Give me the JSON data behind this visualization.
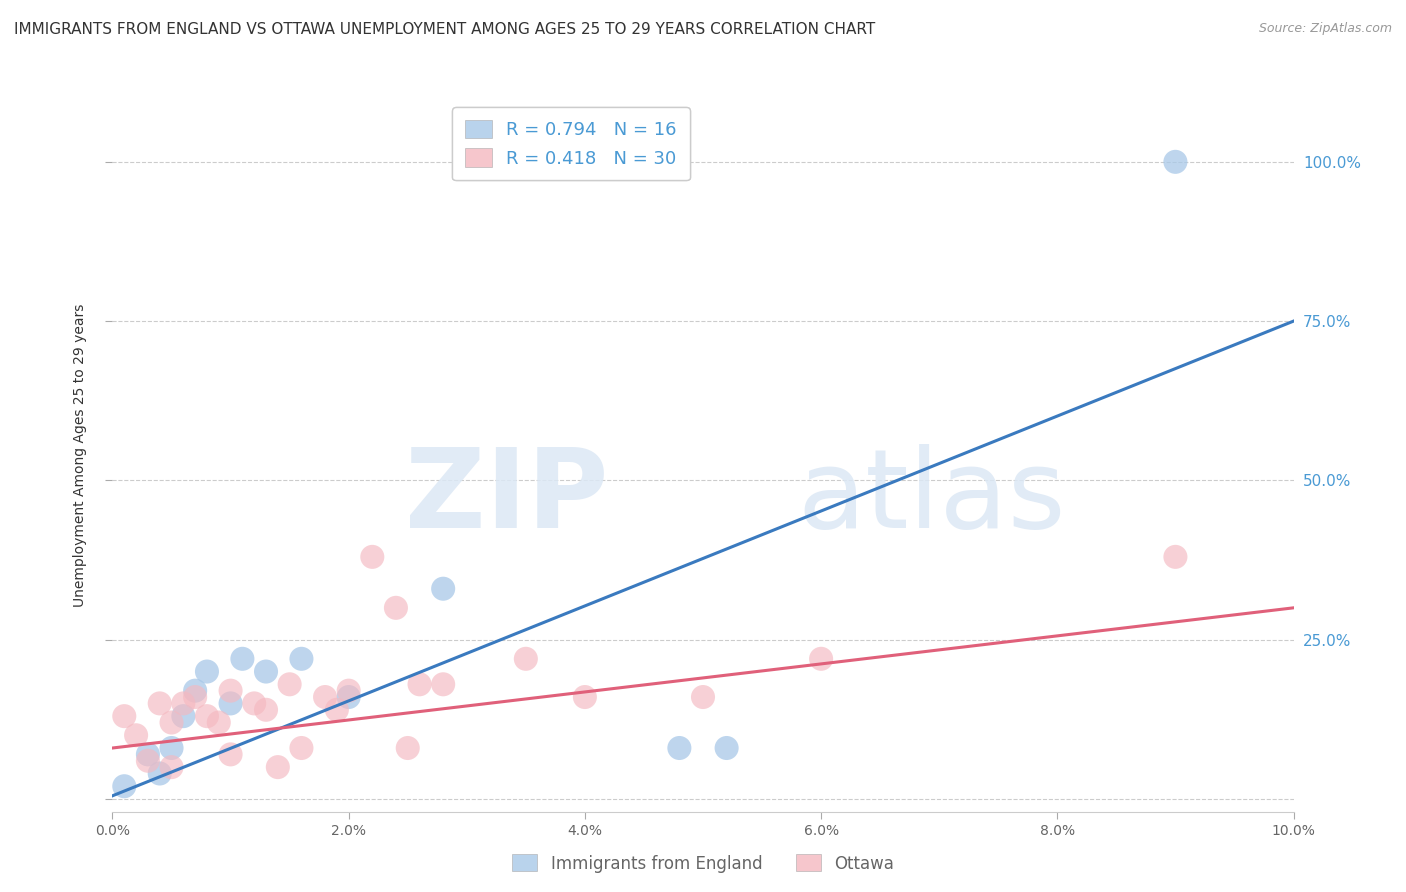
{
  "title": "IMMIGRANTS FROM ENGLAND VS OTTAWA UNEMPLOYMENT AMONG AGES 25 TO 29 YEARS CORRELATION CHART",
  "source": "Source: ZipAtlas.com",
  "ylabel": "Unemployment Among Ages 25 to 29 years",
  "legend_labels": [
    "Immigrants from England",
    "Ottawa"
  ],
  "blue_R": "0.794",
  "blue_N": "16",
  "pink_R": "0.418",
  "pink_N": "30",
  "blue_color": "#a8c8e8",
  "pink_color": "#f4b8c0",
  "blue_line_color": "#3a7abf",
  "pink_line_color": "#e0607a",
  "watermark_zip": "ZIP",
  "watermark_atlas": "atlas",
  "xlim": [
    0.0,
    0.1
  ],
  "ylim": [
    -0.02,
    1.1
  ],
  "yticks": [
    0.0,
    0.25,
    0.5,
    0.75,
    1.0
  ],
  "ytick_labels": [
    "",
    "25.0%",
    "50.0%",
    "75.0%",
    "100.0%"
  ],
  "xticks": [
    0.0,
    0.02,
    0.04,
    0.06,
    0.08,
    0.1
  ],
  "xtick_labels": [
    "0.0%",
    "2.0%",
    "4.0%",
    "6.0%",
    "8.0%",
    "10.0%"
  ],
  "blue_x": [
    0.001,
    0.003,
    0.004,
    0.005,
    0.006,
    0.007,
    0.008,
    0.01,
    0.011,
    0.013,
    0.016,
    0.02,
    0.028,
    0.048,
    0.052,
    0.09
  ],
  "blue_y": [
    0.02,
    0.07,
    0.04,
    0.08,
    0.13,
    0.17,
    0.2,
    0.15,
    0.22,
    0.2,
    0.22,
    0.16,
    0.33,
    0.08,
    0.08,
    1.0
  ],
  "pink_x": [
    0.001,
    0.002,
    0.003,
    0.004,
    0.005,
    0.005,
    0.006,
    0.007,
    0.008,
    0.009,
    0.01,
    0.01,
    0.012,
    0.013,
    0.014,
    0.015,
    0.016,
    0.018,
    0.019,
    0.02,
    0.022,
    0.024,
    0.025,
    0.026,
    0.028,
    0.035,
    0.04,
    0.05,
    0.06,
    0.09
  ],
  "pink_y": [
    0.13,
    0.1,
    0.06,
    0.15,
    0.12,
    0.05,
    0.15,
    0.16,
    0.13,
    0.12,
    0.17,
    0.07,
    0.15,
    0.14,
    0.05,
    0.18,
    0.08,
    0.16,
    0.14,
    0.17,
    0.38,
    0.3,
    0.08,
    0.18,
    0.18,
    0.22,
    0.16,
    0.16,
    0.22,
    0.38
  ],
  "blue_regline_x": [
    0.0,
    0.1
  ],
  "blue_regline_y": [
    0.005,
    0.75
  ],
  "pink_regline_x": [
    0.0,
    0.1
  ],
  "pink_regline_y": [
    0.08,
    0.3
  ],
  "background_color": "#ffffff",
  "grid_color": "#cccccc",
  "title_fontsize": 11,
  "axis_label_fontsize": 10,
  "tick_fontsize": 10,
  "right_tick_color": "#4a9ad4"
}
